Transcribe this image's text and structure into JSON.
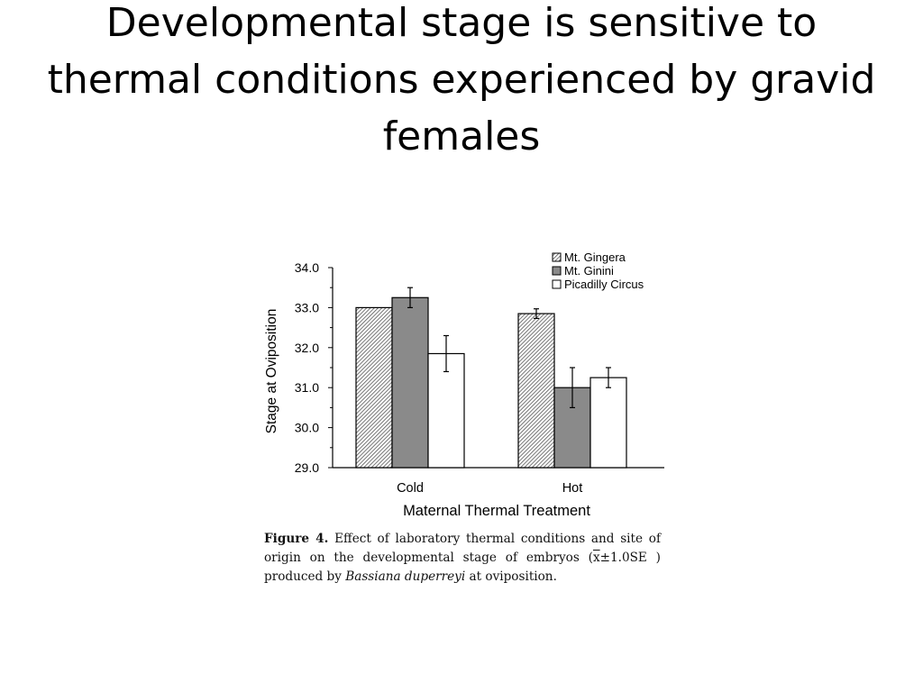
{
  "slide": {
    "title": "Developmental stage is sensitive to thermal conditions experienced by gravid females"
  },
  "caption": {
    "label": "Figure 4.",
    "text_before": "Effect of laboratory thermal conditions and site of origin on the developmental stage of embryos (",
    "symbol": "x",
    "stat": "±1.0SE )",
    "text_middle": " produced by ",
    "species": "Bassiana duperreyi",
    "text_after": " at oviposition."
  },
  "chart_data": {
    "type": "bar",
    "xlabel": "Maternal Thermal Treatment",
    "ylabel": "Stage at Oviposition",
    "ylim": [
      29.0,
      34.0
    ],
    "yticks": [
      "29.0",
      "30.0",
      "31.0",
      "32.0",
      "33.0",
      "34.0"
    ],
    "categories": [
      "Cold",
      "Hot"
    ],
    "series": [
      {
        "name": "Mt. Gingera",
        "pattern": "hatched",
        "color": "#c8c8c8",
        "values": [
          33.0,
          32.85
        ],
        "error": [
          0.0,
          0.12
        ]
      },
      {
        "name": "Mt. Ginini",
        "pattern": "solid",
        "color": "#8a8a8a",
        "values": [
          33.25,
          31.0
        ],
        "error": [
          0.25,
          0.5
        ]
      },
      {
        "name": "Picadilly Circus",
        "pattern": "open",
        "color": "#ffffff",
        "values": [
          31.85,
          31.25
        ],
        "error": [
          0.45,
          0.25
        ]
      }
    ],
    "legend_position": "top-right",
    "grid": false
  }
}
